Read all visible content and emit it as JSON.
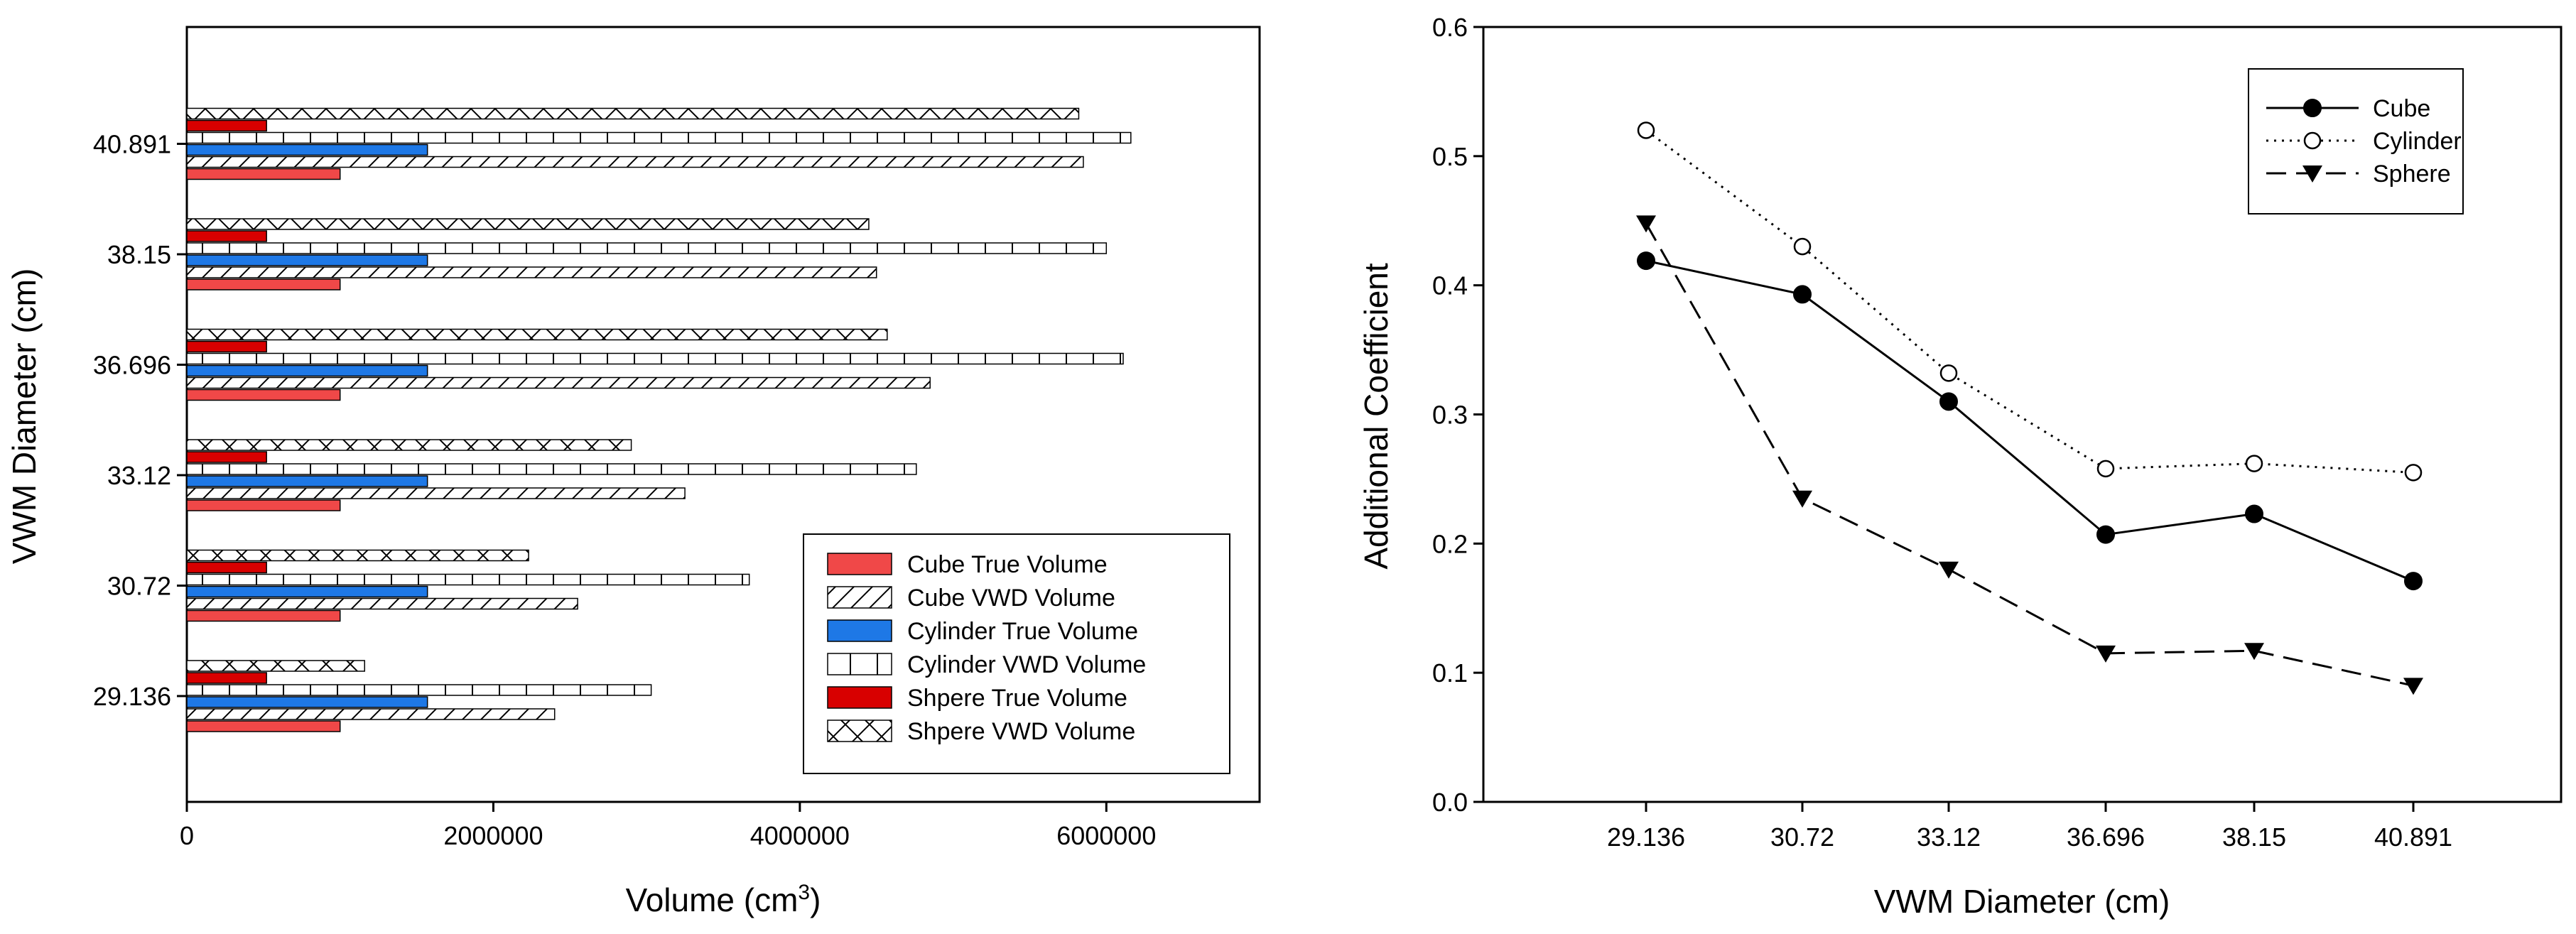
{
  "chart_data": [
    {
      "type": "bar",
      "orientation": "horizontal",
      "title": "",
      "xlabel": "Volume (cm",
      "xlabel_superscript": "3",
      "xlabel_suffix": ")",
      "ylabel": "VWM Diameter  (cm)",
      "xlim": [
        0,
        7000000
      ],
      "xticks": [
        0,
        2000000,
        4000000,
        6000000
      ],
      "xtick_labels": [
        "0",
        "2000000",
        "4000000",
        "6000000"
      ],
      "categories": [
        "29.136",
        "30.72",
        "33.12",
        "36.696",
        "38.15",
        "40.891"
      ],
      "legend_position": "lower-right",
      "series": [
        {
          "name": "Cube True Volume",
          "pattern": "solid",
          "color": "#f04848",
          "values": [
            1000000,
            1000000,
            1000000,
            1000000,
            1000000,
            1000000
          ]
        },
        {
          "name": "Cube VWD Volume",
          "pattern": "diagonal",
          "color": "#ffffff",
          "values": [
            2400000,
            2550000,
            3250000,
            4850000,
            4500000,
            5850000
          ]
        },
        {
          "name": "Cylinder True Volume",
          "pattern": "solid",
          "color": "#1e78e6",
          "values": [
            1570000,
            1570000,
            1570000,
            1570000,
            1570000,
            1570000
          ]
        },
        {
          "name": "Cylinder VWD Volume",
          "pattern": "vertical",
          "color": "#ffffff",
          "values": [
            3030000,
            3670000,
            4760000,
            6110000,
            6000000,
            6160000
          ]
        },
        {
          "name": "Shpere True Volume",
          "pattern": "solid",
          "color": "#d80000",
          "values": [
            520000,
            520000,
            520000,
            520000,
            520000,
            520000
          ]
        },
        {
          "name": "Shpere VWD Volume",
          "pattern": "crosshatch",
          "color": "#ffffff",
          "values": [
            1160000,
            2230000,
            2900000,
            4570000,
            4450000,
            5820000
          ]
        }
      ]
    },
    {
      "type": "line",
      "title": "",
      "xlabel": "VWM Diameter  (cm)",
      "ylabel": "Additional Coefficient",
      "categories": [
        "29.136",
        "30.72",
        "33.12",
        "36.696",
        "38.15",
        "40.891"
      ],
      "ylim": [
        0,
        0.6
      ],
      "yticks": [
        0.0,
        0.1,
        0.2,
        0.3,
        0.4,
        0.5,
        0.6
      ],
      "ytick_labels": [
        "0.0",
        "0.1",
        "0.2",
        "0.3",
        "0.4",
        "0.5",
        "0.6"
      ],
      "legend_position": "top-right",
      "series": [
        {
          "name": "Cube",
          "marker": "filled-circle",
          "line": "solid",
          "values": [
            0.419,
            0.393,
            0.31,
            0.207,
            0.223,
            0.171
          ]
        },
        {
          "name": "Cylinder",
          "marker": "open-circle",
          "line": "dotted",
          "values": [
            0.52,
            0.43,
            0.332,
            0.258,
            0.262,
            0.255
          ]
        },
        {
          "name": "Sphere",
          "marker": "filled-triangle-down",
          "line": "dashed",
          "values": [
            0.448,
            0.235,
            0.18,
            0.115,
            0.117,
            0.09
          ]
        }
      ]
    }
  ]
}
